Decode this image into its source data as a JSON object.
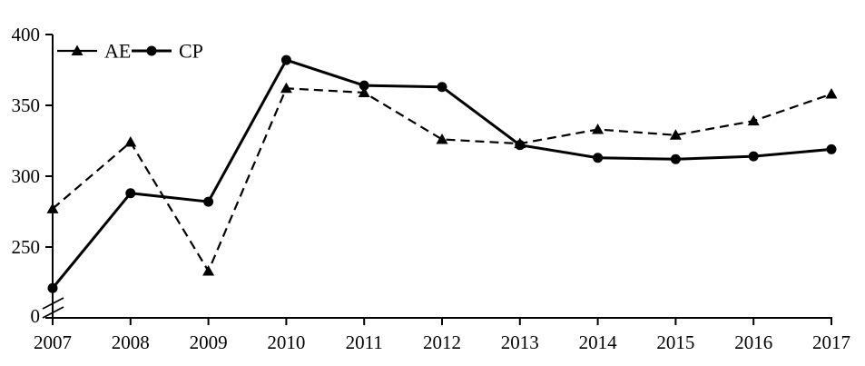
{
  "chart_data": {
    "type": "line",
    "title": "",
    "xlabel": "",
    "ylabel": "",
    "x": [
      2007,
      2008,
      2009,
      2010,
      2011,
      2012,
      2013,
      2014,
      2015,
      2016,
      2017
    ],
    "series": [
      {
        "name": "AE",
        "line_style": "dashed",
        "marker": "triangle",
        "values": [
          277,
          324,
          233,
          362,
          359,
          326,
          323,
          333,
          329,
          339,
          358
        ]
      },
      {
        "name": "CP",
        "line_style": "solid",
        "marker": "circle",
        "values": [
          221,
          288,
          282,
          382,
          364,
          363,
          322,
          313,
          312,
          314,
          319
        ]
      }
    ],
    "y_ticks": [
      400,
      350,
      300,
      250,
      0
    ],
    "ylim_display": [
      250,
      400
    ],
    "axis_break": true,
    "grid": false,
    "legend_position": "top-left",
    "colors": {
      "line": "#000000",
      "background": "#ffffff"
    }
  }
}
